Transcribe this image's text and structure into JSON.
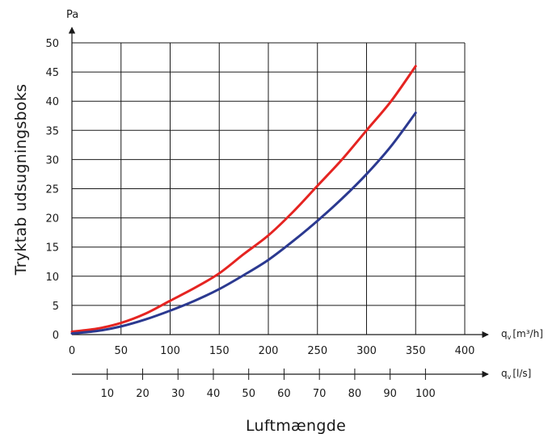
{
  "chart_data": {
    "type": "line",
    "ylabel": "Tryktab udsugningsboks",
    "xlabel": "Luftmængde",
    "y_unit": "Pa",
    "x_unit_primary": "[m³/h]",
    "x_unit_secondary": "[l/s]",
    "x_unit_symbol": "q",
    "x_unit_subscript": "v",
    "xlim": [
      0,
      400
    ],
    "ylim": [
      0,
      50
    ],
    "grid": true,
    "x_ticks": [
      "0",
      "50",
      "100",
      "150",
      "200",
      "250",
      "300",
      "350",
      "400"
    ],
    "y_ticks": [
      "0",
      "5",
      "10",
      "15",
      "20",
      "25",
      "30",
      "35",
      "40",
      "45",
      "50"
    ],
    "secondary_x_ticks": [
      "10",
      "20",
      "30",
      "40",
      "50",
      "60",
      "70",
      "80",
      "90",
      "100"
    ],
    "secondary_x_values": [
      10,
      20,
      30,
      40,
      50,
      60,
      70,
      80,
      90,
      100
    ],
    "series": [
      {
        "color": "#e52421",
        "x": [
          0,
          25,
          50,
          75,
          100,
          125,
          150,
          175,
          200,
          225,
          250,
          275,
          300,
          325,
          350
        ],
        "y": [
          0.5,
          1.0,
          2.0,
          3.6,
          5.8,
          8.0,
          10.5,
          13.8,
          17.0,
          21.0,
          25.5,
          30.0,
          35.0,
          40.0,
          46.0
        ]
      },
      {
        "color": "#2b3990",
        "x": [
          0,
          25,
          50,
          75,
          100,
          125,
          150,
          175,
          200,
          225,
          250,
          275,
          300,
          325,
          350
        ],
        "y": [
          0.2,
          0.6,
          1.4,
          2.6,
          4.1,
          5.8,
          7.8,
          10.2,
          12.8,
          16.0,
          19.5,
          23.3,
          27.5,
          32.3,
          38.0
        ]
      }
    ]
  }
}
